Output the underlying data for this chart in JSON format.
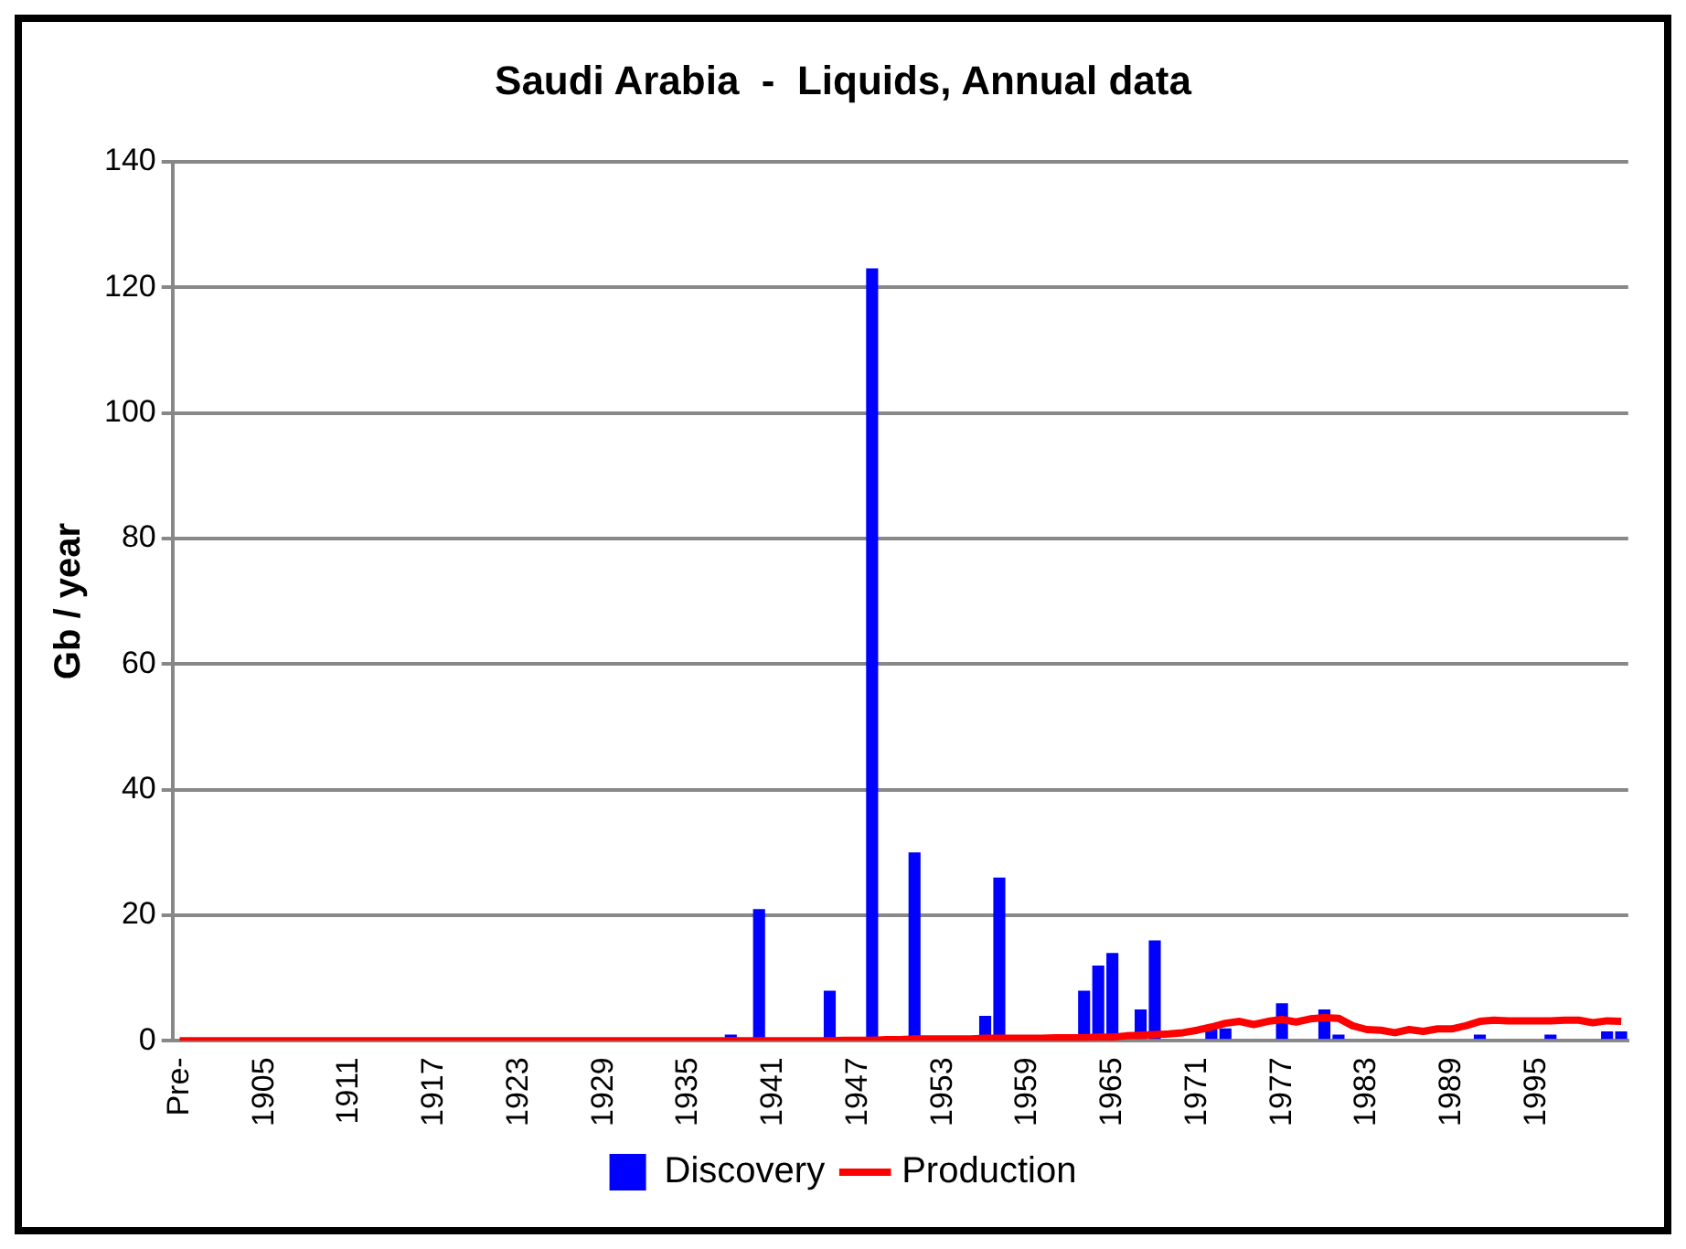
{
  "chart_data": {
    "type": "bar",
    "title": "Saudi Arabia  -  Liquids, Annual data",
    "ylabel": "Gb / year",
    "categories": [
      "Pre-",
      null,
      null,
      null,
      null,
      null,
      "1905",
      null,
      null,
      null,
      null,
      null,
      "1911",
      null,
      null,
      null,
      null,
      null,
      "1917",
      null,
      null,
      null,
      null,
      null,
      "1923",
      null,
      null,
      null,
      null,
      null,
      "1929",
      null,
      null,
      null,
      null,
      null,
      "1935",
      null,
      null,
      null,
      null,
      null,
      "1941",
      null,
      null,
      null,
      null,
      null,
      "1947",
      null,
      null,
      null,
      null,
      null,
      "1953",
      null,
      null,
      null,
      null,
      null,
      "1959",
      null,
      null,
      null,
      null,
      null,
      "1965",
      null,
      null,
      null,
      null,
      null,
      "1971",
      null,
      null,
      null,
      null,
      null,
      "1977",
      null,
      null,
      null,
      null,
      null,
      "1983",
      null,
      null,
      null,
      null,
      null,
      "1989",
      null,
      null,
      null,
      null,
      null,
      "1995",
      null,
      null,
      null,
      null,
      null,
      null
    ],
    "series": [
      {
        "name": "Discovery",
        "color": "#0000ff",
        "values": [
          0,
          0,
          0,
          0,
          0,
          0,
          0,
          0,
          0,
          0,
          0,
          0,
          0,
          0,
          0,
          0,
          0,
          0,
          0,
          0,
          0,
          0,
          0,
          0,
          0,
          0,
          0,
          0,
          0,
          0,
          0,
          0,
          0,
          0,
          0,
          0,
          0,
          0,
          0,
          1,
          0,
          21,
          0,
          0,
          0,
          0,
          8,
          0,
          0,
          123,
          0,
          0,
          30,
          0,
          0,
          0,
          0,
          4,
          26,
          0,
          0,
          0,
          0,
          0,
          8,
          12,
          14,
          0,
          5,
          16,
          0,
          0,
          0,
          2,
          2,
          0,
          0,
          0,
          6,
          0,
          0,
          5,
          1,
          0,
          0,
          0,
          0,
          0,
          0,
          0,
          0,
          0,
          1,
          0,
          0,
          0,
          0,
          1,
          0,
          0,
          0,
          1.5,
          1.5
        ]
      },
      {
        "name": "Production",
        "type": "line",
        "color": "#ff0000",
        "values": [
          0,
          0,
          0,
          0,
          0,
          0,
          0,
          0,
          0,
          0,
          0,
          0,
          0,
          0,
          0,
          0,
          0,
          0,
          0,
          0,
          0,
          0,
          0,
          0,
          0,
          0,
          0,
          0,
          0,
          0,
          0,
          0,
          0,
          0,
          0,
          0,
          0,
          0,
          0,
          0,
          0,
          0,
          0,
          0,
          0,
          0,
          0,
          0.1,
          0.1,
          0.1,
          0.2,
          0.2,
          0.3,
          0.3,
          0.3,
          0.3,
          0.3,
          0.4,
          0.4,
          0.4,
          0.4,
          0.4,
          0.5,
          0.5,
          0.5,
          0.6,
          0.6,
          0.8,
          0.9,
          1,
          1.1,
          1.3,
          1.7,
          2.2,
          2.8,
          3.1,
          2.6,
          3.1,
          3.4,
          3,
          3.5,
          3.7,
          3.6,
          2.4,
          1.8,
          1.7,
          1.3,
          1.8,
          1.5,
          1.9,
          1.9,
          2.4,
          3.1,
          3.3,
          3.2,
          3.2,
          3.2,
          3.2,
          3.3,
          3.3,
          2.9,
          3.2,
          3.1
        ]
      }
    ],
    "ylim": [
      0,
      140
    ],
    "yticks": [
      0,
      20,
      40,
      60,
      80,
      100,
      120,
      140
    ],
    "grid": "y",
    "legend": "bottom",
    "marker": "none"
  }
}
